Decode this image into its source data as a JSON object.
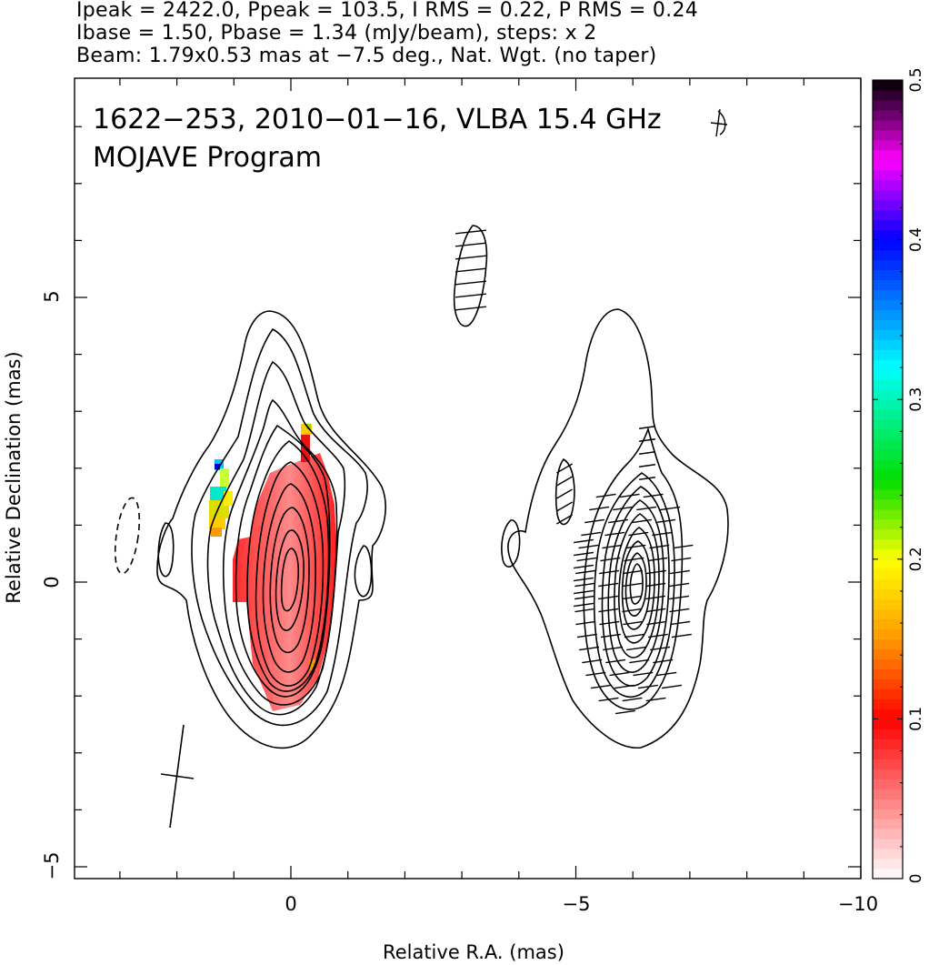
{
  "header": {
    "line1": "Ipeak = 2422.0, Ppeak = 103.5, I RMS = 0.22, P RMS = 0.24",
    "line2": "Ibase = 1.50, Pbase = 1.34 (mJy/beam), steps: x 2",
    "line3": "Beam: 1.79x0.53 mas at −7.5 deg., Nat. Wgt. (no taper)"
  },
  "overlay": {
    "line1": "1622−253, 2010−01−16, VLBA 15.4 GHz",
    "line2": "MOJAVE Program"
  },
  "chart_data": [
    {
      "type": "heatmap",
      "xlabel": "Relative R.A. (mas)",
      "ylabel": "Relative Declination (mas)",
      "xlim": [
        3.8,
        -10.7
      ],
      "ylim": [
        -5.2,
        8.9
      ],
      "x_axis_reversed": true,
      "x_ticks": [
        0,
        -5,
        -10
      ],
      "x_tick_labels": [
        "0",
        "−5",
        "−10"
      ],
      "y_ticks": [
        -5,
        0,
        5
      ],
      "y_tick_labels": [
        "−5",
        "0",
        "5"
      ],
      "beam": {
        "major_mas": 1.79,
        "minor_mas": 0.53,
        "pa_deg": -7.5,
        "center": [
          2.8,
          0.8
        ]
      },
      "total_intensity_contours": {
        "base_mJy_per_beam": 1.5,
        "step_factor": 2,
        "peak_mJy_per_beam": 2422.0,
        "left_component_center": [
          0,
          0.3
        ],
        "right_component_center": [
          -6,
          0.1
        ]
      },
      "fractional_polarization_color": {
        "range": [
          0,
          0.5
        ],
        "dominant_value": 0.1,
        "knot_values": [
          0.1,
          0.15,
          0.2,
          0.3,
          0.4
        ]
      },
      "evpa_ticks_panel": "right",
      "grid": false
    },
    {
      "type": "heatmap",
      "orientation": "colorbar-vertical",
      "range": [
        0,
        0.5
      ],
      "tick_values": [
        0,
        0.1,
        0.2,
        0.3,
        0.4,
        0.5
      ],
      "tick_labels": [
        "0",
        "0.1",
        "0.2",
        "0.3",
        "0.4",
        "0.5"
      ],
      "colormap_stops": [
        {
          "v": 0.0,
          "color": "#ffffff"
        },
        {
          "v": 0.1,
          "color": "#ff0000"
        },
        {
          "v": 0.15,
          "color": "#ff9900"
        },
        {
          "v": 0.2,
          "color": "#ffff00"
        },
        {
          "v": 0.25,
          "color": "#00dd00"
        },
        {
          "v": 0.32,
          "color": "#00ffff"
        },
        {
          "v": 0.4,
          "color": "#0000ff"
        },
        {
          "v": 0.45,
          "color": "#ff00ff"
        },
        {
          "v": 0.5,
          "color": "#000000"
        }
      ]
    }
  ]
}
